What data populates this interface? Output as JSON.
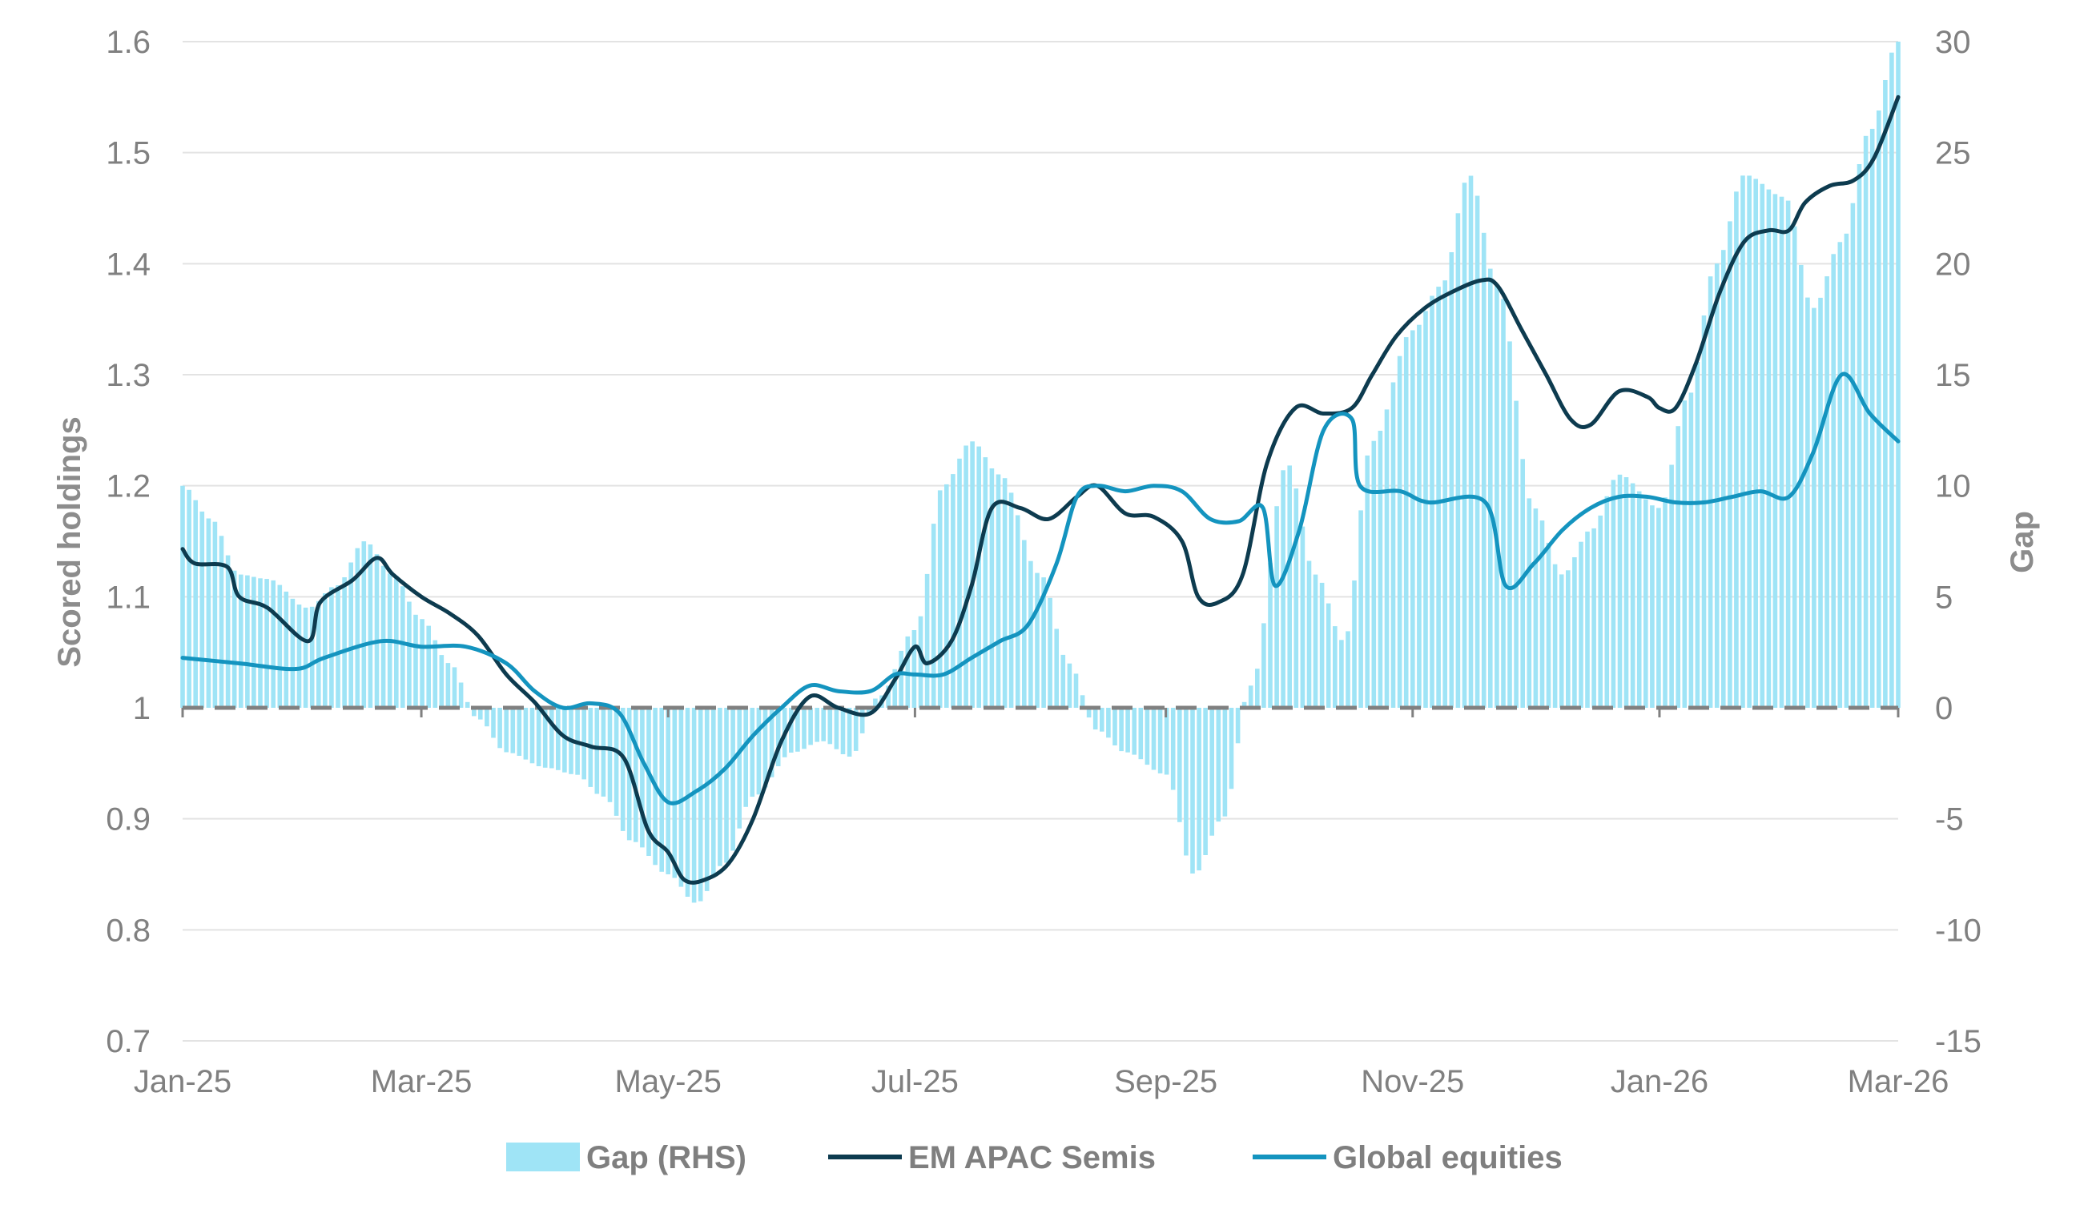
{
  "chart_data": {
    "type": "bar+line",
    "left_axis": {
      "title": "Scored holdings",
      "min": 0.7,
      "max": 1.6,
      "ticks": [
        0.7,
        0.8,
        0.9,
        1,
        1.1,
        1.2,
        1.3,
        1.4,
        1.5,
        1.6
      ],
      "tick_labels": [
        "0.7",
        "0.8",
        "0.9",
        "1",
        "1.1",
        "1.2",
        "1.3",
        "1.4",
        "1.5",
        "1.6"
      ]
    },
    "right_axis": {
      "title": "Gap",
      "min": -15,
      "max": 30,
      "ticks": [
        -15,
        -10,
        -5,
        0,
        5,
        10,
        15,
        20,
        25,
        30
      ],
      "tick_labels": [
        "-15",
        "-10",
        "-5",
        "0",
        "5",
        "10",
        "15",
        "20",
        "25",
        "30"
      ]
    },
    "x_axis": {
      "start": "2025-01-01",
      "end": "2026-03-01",
      "tick_labels": [
        "Jan-25",
        "Mar-25",
        "May-25",
        "Jul-25",
        "Sep-25",
        "Nov-25",
        "Jan-26",
        "Mar-26"
      ],
      "tick_dates": [
        "2025-01-01",
        "2025-03-01",
        "2025-05-01",
        "2025-07-01",
        "2025-09-01",
        "2025-11-01",
        "2026-01-01",
        "2026-03-01"
      ]
    },
    "grid": "horizontal",
    "baseline": {
      "value": 1,
      "style": "dashed",
      "color": "#808080"
    },
    "legend": {
      "position": "bottom-center"
    },
    "series": [
      {
        "name": "Gap (RHS)",
        "type": "bar",
        "axis": "right",
        "color": "#9fe4f6",
        "points": [
          [
            "2025-01-01",
            10
          ],
          [
            "2025-01-08",
            8.5
          ],
          [
            "2025-01-15",
            6
          ],
          [
            "2025-01-22",
            5.8
          ],
          [
            "2025-02-01",
            4.5
          ],
          [
            "2025-02-08",
            5.5
          ],
          [
            "2025-02-15",
            7.5
          ],
          [
            "2025-02-22",
            6
          ],
          [
            "2025-03-01",
            4
          ],
          [
            "2025-03-08",
            2
          ],
          [
            "2025-03-15",
            -0.5
          ],
          [
            "2025-03-22",
            -2
          ],
          [
            "2025-04-01",
            -2.7
          ],
          [
            "2025-04-08",
            -3
          ],
          [
            "2025-04-15",
            -4
          ],
          [
            "2025-04-22",
            -6
          ],
          [
            "2025-05-01",
            -7.5
          ],
          [
            "2025-05-08",
            -8.8
          ],
          [
            "2025-05-15",
            -7
          ],
          [
            "2025-05-22",
            -4
          ],
          [
            "2025-06-01",
            -2
          ],
          [
            "2025-06-08",
            -1.5
          ],
          [
            "2025-06-15",
            -2.2
          ],
          [
            "2025-06-22",
            0.5
          ],
          [
            "2025-07-01",
            3.5
          ],
          [
            "2025-07-08",
            10
          ],
          [
            "2025-07-15",
            12
          ],
          [
            "2025-07-22",
            10.5
          ],
          [
            "2025-08-01",
            6
          ],
          [
            "2025-08-08",
            2
          ],
          [
            "2025-08-15",
            -1
          ],
          [
            "2025-08-22",
            -2
          ],
          [
            "2025-09-01",
            -3
          ],
          [
            "2025-09-08",
            -7.5
          ],
          [
            "2025-09-15",
            -5
          ],
          [
            "2025-09-22",
            1
          ],
          [
            "2025-10-01",
            11
          ],
          [
            "2025-10-08",
            6
          ],
          [
            "2025-10-15",
            3
          ],
          [
            "2025-10-22",
            12
          ],
          [
            "2025-11-01",
            17
          ],
          [
            "2025-11-08",
            19
          ],
          [
            "2025-11-15",
            24
          ],
          [
            "2025-11-22",
            19
          ],
          [
            "2025-12-01",
            9
          ],
          [
            "2025-12-08",
            6
          ],
          [
            "2025-12-15",
            8
          ],
          [
            "2025-12-22",
            10.5
          ],
          [
            "2026-01-01",
            9
          ],
          [
            "2026-01-08",
            14
          ],
          [
            "2026-01-15",
            20
          ],
          [
            "2026-01-22",
            24
          ],
          [
            "2026-02-01",
            23
          ],
          [
            "2026-02-08",
            18
          ],
          [
            "2026-02-15",
            21
          ],
          [
            "2026-02-22",
            26
          ],
          [
            "2026-03-01",
            30
          ]
        ]
      },
      {
        "name": "EM APAC Semis",
        "type": "line",
        "axis": "left",
        "color": "#0d3b4f",
        "points": [
          [
            "2025-01-01",
            1.143
          ],
          [
            "2025-01-04",
            1.13
          ],
          [
            "2025-01-12",
            1.127
          ],
          [
            "2025-01-15",
            1.1
          ],
          [
            "2025-01-22",
            1.09
          ],
          [
            "2025-02-01",
            1.06
          ],
          [
            "2025-02-04",
            1.095
          ],
          [
            "2025-02-12",
            1.115
          ],
          [
            "2025-02-18",
            1.135
          ],
          [
            "2025-02-22",
            1.12
          ],
          [
            "2025-03-01",
            1.1
          ],
          [
            "2025-03-08",
            1.085
          ],
          [
            "2025-03-15",
            1.065
          ],
          [
            "2025-03-22",
            1.03
          ],
          [
            "2025-03-29",
            1.005
          ],
          [
            "2025-04-05",
            0.975
          ],
          [
            "2025-04-12",
            0.965
          ],
          [
            "2025-04-20",
            0.955
          ],
          [
            "2025-04-26",
            0.89
          ],
          [
            "2025-05-01",
            0.87
          ],
          [
            "2025-05-05",
            0.845
          ],
          [
            "2025-05-10",
            0.845
          ],
          [
            "2025-05-16",
            0.86
          ],
          [
            "2025-05-22",
            0.9
          ],
          [
            "2025-05-29",
            0.97
          ],
          [
            "2025-06-05",
            1.01
          ],
          [
            "2025-06-12",
            1.0
          ],
          [
            "2025-06-20",
            0.995
          ],
          [
            "2025-06-26",
            1.025
          ],
          [
            "2025-07-01",
            1.055
          ],
          [
            "2025-07-04",
            1.04
          ],
          [
            "2025-07-10",
            1.06
          ],
          [
            "2025-07-15",
            1.11
          ],
          [
            "2025-07-20",
            1.18
          ],
          [
            "2025-07-27",
            1.18
          ],
          [
            "2025-08-03",
            1.17
          ],
          [
            "2025-08-10",
            1.19
          ],
          [
            "2025-08-15",
            1.2
          ],
          [
            "2025-08-22",
            1.175
          ],
          [
            "2025-08-29",
            1.172
          ],
          [
            "2025-09-05",
            1.15
          ],
          [
            "2025-09-09",
            1.1
          ],
          [
            "2025-09-14",
            1.095
          ],
          [
            "2025-09-20",
            1.12
          ],
          [
            "2025-09-26",
            1.22
          ],
          [
            "2025-10-03",
            1.27
          ],
          [
            "2025-10-10",
            1.265
          ],
          [
            "2025-10-17",
            1.27
          ],
          [
            "2025-10-22",
            1.3
          ],
          [
            "2025-10-28",
            1.335
          ],
          [
            "2025-11-04",
            1.36
          ],
          [
            "2025-11-11",
            1.375
          ],
          [
            "2025-11-18",
            1.385
          ],
          [
            "2025-11-22",
            1.38
          ],
          [
            "2025-11-28",
            1.34
          ],
          [
            "2025-12-04",
            1.3
          ],
          [
            "2025-12-10",
            1.26
          ],
          [
            "2025-12-15",
            1.255
          ],
          [
            "2025-12-22",
            1.285
          ],
          [
            "2025-12-29",
            1.28
          ],
          [
            "2026-01-01",
            1.27
          ],
          [
            "2026-01-05",
            1.27
          ],
          [
            "2026-01-10",
            1.31
          ],
          [
            "2026-01-16",
            1.375
          ],
          [
            "2026-01-22",
            1.42
          ],
          [
            "2026-01-28",
            1.43
          ],
          [
            "2026-02-02",
            1.43
          ],
          [
            "2026-02-06",
            1.455
          ],
          [
            "2026-02-12",
            1.47
          ],
          [
            "2026-02-18",
            1.475
          ],
          [
            "2026-02-23",
            1.495
          ],
          [
            "2026-03-01",
            1.55
          ]
        ]
      },
      {
        "name": "Global equities",
        "type": "line",
        "axis": "left",
        "color": "#1494bf",
        "points": [
          [
            "2025-01-01",
            1.045
          ],
          [
            "2025-01-15",
            1.04
          ],
          [
            "2025-01-29",
            1.035
          ],
          [
            "2025-02-05",
            1.045
          ],
          [
            "2025-02-19",
            1.06
          ],
          [
            "2025-03-01",
            1.055
          ],
          [
            "2025-03-12",
            1.055
          ],
          [
            "2025-03-22",
            1.04
          ],
          [
            "2025-03-29",
            1.015
          ],
          [
            "2025-04-05",
            1.0
          ],
          [
            "2025-04-12",
            1.004
          ],
          [
            "2025-04-19",
            0.995
          ],
          [
            "2025-04-25",
            0.95
          ],
          [
            "2025-05-01",
            0.915
          ],
          [
            "2025-05-08",
            0.925
          ],
          [
            "2025-05-15",
            0.945
          ],
          [
            "2025-05-22",
            0.975
          ],
          [
            "2025-05-29",
            1.0
          ],
          [
            "2025-06-05",
            1.02
          ],
          [
            "2025-06-12",
            1.015
          ],
          [
            "2025-06-20",
            1.015
          ],
          [
            "2025-06-26",
            1.03
          ],
          [
            "2025-07-01",
            1.03
          ],
          [
            "2025-07-08",
            1.03
          ],
          [
            "2025-07-15",
            1.045
          ],
          [
            "2025-07-22",
            1.06
          ],
          [
            "2025-07-29",
            1.075
          ],
          [
            "2025-08-05",
            1.13
          ],
          [
            "2025-08-10",
            1.19
          ],
          [
            "2025-08-15",
            1.2
          ],
          [
            "2025-08-22",
            1.195
          ],
          [
            "2025-08-29",
            1.2
          ],
          [
            "2025-09-05",
            1.195
          ],
          [
            "2025-09-12",
            1.17
          ],
          [
            "2025-09-19",
            1.168
          ],
          [
            "2025-09-25",
            1.18
          ],
          [
            "2025-09-28",
            1.11
          ],
          [
            "2025-10-04",
            1.16
          ],
          [
            "2025-10-10",
            1.25
          ],
          [
            "2025-10-17",
            1.26
          ],
          [
            "2025-10-19",
            1.2
          ],
          [
            "2025-10-29",
            1.195
          ],
          [
            "2025-11-05",
            1.185
          ],
          [
            "2025-11-19",
            1.185
          ],
          [
            "2025-11-24",
            1.11
          ],
          [
            "2025-12-01",
            1.13
          ],
          [
            "2025-12-08",
            1.16
          ],
          [
            "2025-12-15",
            1.18
          ],
          [
            "2025-12-22",
            1.19
          ],
          [
            "2025-12-29",
            1.19
          ],
          [
            "2026-01-05",
            1.185
          ],
          [
            "2026-01-12",
            1.185
          ],
          [
            "2026-01-19",
            1.19
          ],
          [
            "2026-01-26",
            1.195
          ],
          [
            "2026-02-02",
            1.19
          ],
          [
            "2026-02-08",
            1.23
          ],
          [
            "2026-02-15",
            1.3
          ],
          [
            "2026-02-22",
            1.265
          ],
          [
            "2026-03-01",
            1.24
          ]
        ]
      }
    ]
  }
}
